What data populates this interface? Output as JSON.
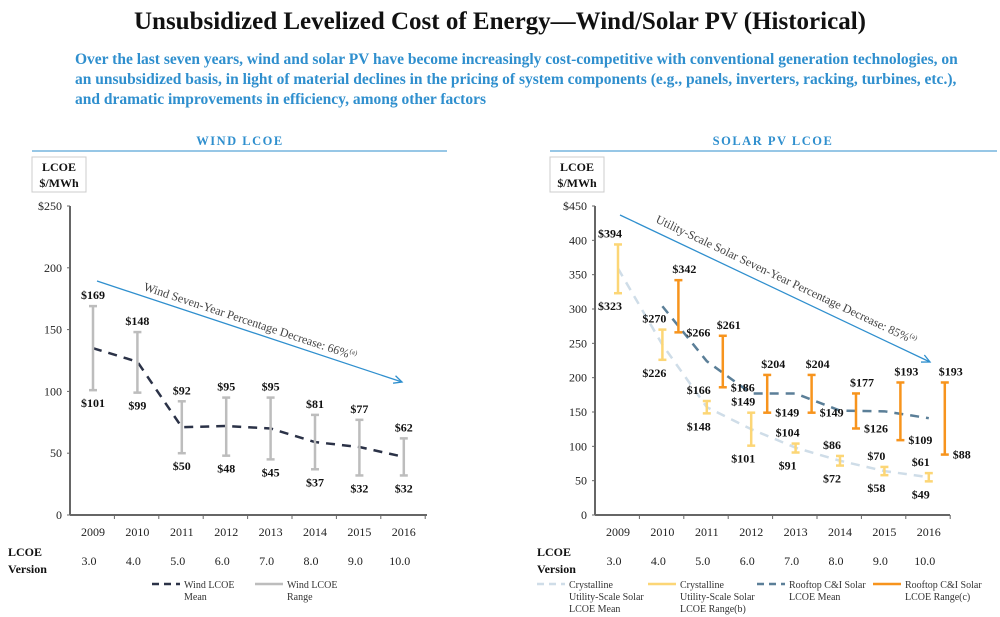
{
  "title": "Unsubsidized Levelized Cost of Energy—Wind/Solar PV (Historical)",
  "subtitle": "Over the last seven years, wind and solar PV have become increasingly cost-competitive with conventional generation technologies, on an unsubsidized basis, in light of material declines in the pricing of system components (e.g., panels, inverters, racking, turbines, etc.), and dramatic improvements in efficiency, among other factors",
  "colors": {
    "accent": "#2f8fce",
    "wind_mean": "#2b3247",
    "wind_range": "#bdbdbd",
    "utility_mean": "#cfdde8",
    "utility_range": "#fcd676",
    "rooftop_mean": "#5b7f98",
    "rooftop_range": "#f7941d"
  },
  "chart_data": [
    {
      "type": "range-line",
      "header": "WIND LCOE",
      "unit_box": [
        "LCOE",
        "$/MWh"
      ],
      "x": [
        "2009",
        "2010",
        "2011",
        "2012",
        "2013",
        "2014",
        "2015",
        "2016"
      ],
      "version_label": [
        "LCOE",
        "Version"
      ],
      "versions": [
        "3.0",
        "4.0",
        "5.0",
        "6.0",
        "7.0",
        "8.0",
        "9.0",
        "10.0"
      ],
      "ylim": [
        0,
        250
      ],
      "yticks": [
        "0",
        "50",
        "100",
        "150",
        "200",
        "$250"
      ],
      "annotation": "Wind Seven-Year Percentage Decrease: 66%",
      "annotation_note": "(a)",
      "series": [
        {
          "name": "Wind LCOE Mean",
          "kind": "mean",
          "style": "dashed",
          "color": "#2b3247",
          "values": [
            135,
            124,
            71,
            72,
            70,
            59,
            55,
            47
          ]
        },
        {
          "name": "Wind LCOE Range",
          "kind": "range",
          "color": "#bdbdbd",
          "low": [
            101,
            99,
            50,
            48,
            45,
            37,
            32,
            32
          ],
          "high": [
            169,
            148,
            92,
            95,
            95,
            81,
            77,
            62
          ],
          "low_labels": [
            "$101",
            "$99",
            "$50",
            "$48",
            "$45",
            "$37",
            "$32",
            "$32"
          ],
          "high_labels": [
            "$169",
            "$148",
            "$92",
            "$95",
            "$95",
            "$81",
            "$77",
            "$62"
          ]
        }
      ],
      "legend": [
        {
          "lines": [
            "Wind LCOE",
            "Mean"
          ],
          "style": "dashed",
          "color": "#2b3247"
        },
        {
          "lines": [
            "Wind LCOE",
            "Range"
          ],
          "style": "solid",
          "color": "#bdbdbd"
        }
      ]
    },
    {
      "type": "range-line",
      "header": "SOLAR PV LCOE",
      "unit_box": [
        "LCOE",
        "$/MWh"
      ],
      "x": [
        "2009",
        "2010",
        "2011",
        "2012",
        "2013",
        "2014",
        "2015",
        "2016"
      ],
      "version_label": [
        "LCOE",
        "Version"
      ],
      "versions": [
        "3.0",
        "4.0",
        "5.0",
        "6.0",
        "7.0",
        "8.0",
        "9.0",
        "10.0"
      ],
      "ylim": [
        0,
        450
      ],
      "yticks": [
        "0",
        "50",
        "100",
        "150",
        "200",
        "250",
        "300",
        "350",
        "400",
        "$450"
      ],
      "annotation": "Utility-Scale Solar Seven-Year Percentage Decrease: 85%",
      "annotation_note": "(a)",
      "series": [
        {
          "name": "Crystalline Utility-Scale Solar LCOE Mean",
          "kind": "mean",
          "style": "dashed",
          "color": "#cfdde8",
          "values": [
            359,
            248,
            157,
            125,
            98,
            79,
            64,
            55
          ]
        },
        {
          "name": "Crystalline Utility-Scale Solar LCOE Range",
          "kind": "range",
          "color": "#fcd676",
          "low": [
            323,
            226,
            148,
            101,
            91,
            72,
            58,
            49
          ],
          "high": [
            394,
            270,
            166,
            149,
            104,
            86,
            70,
            61
          ],
          "low_labels": [
            "$323",
            "$226",
            "$148",
            "$101",
            "$91",
            "$72",
            "$58",
            "$49"
          ],
          "high_labels": [
            "$394",
            "$270",
            "$166",
            "$149",
            "$104",
            "$86",
            "$70",
            "$61"
          ]
        },
        {
          "name": "Rooftop C&I Solar LCOE Mean",
          "kind": "mean",
          "style": "dashed",
          "color": "#5b7f98",
          "values": [
            null,
            304,
            224,
            177,
            177,
            152,
            151,
            141
          ]
        },
        {
          "name": "Rooftop C&I Solar LCOE Range",
          "kind": "range",
          "color": "#f7941d",
          "low": [
            null,
            266,
            186,
            149,
            149,
            126,
            109,
            88
          ],
          "high": [
            null,
            342,
            261,
            204,
            204,
            177,
            193,
            193
          ],
          "low_labels": [
            null,
            "$266",
            "$186",
            "$149",
            "$149",
            "$126",
            "$109",
            "$88"
          ],
          "high_labels": [
            null,
            "$342",
            "$261",
            "$204",
            "$204",
            "$177",
            "$193",
            "$193"
          ]
        }
      ],
      "legend": [
        {
          "lines": [
            "Crystalline",
            "Utility-Scale Solar",
            "LCOE Mean"
          ],
          "style": "dashed",
          "color": "#cfdde8"
        },
        {
          "lines": [
            "Crystalline",
            "Utility-Scale Solar",
            "LCOE Range(b)"
          ],
          "style": "solid",
          "color": "#fcd676"
        },
        {
          "lines": [
            "Rooftop C&I Solar",
            "LCOE Mean"
          ],
          "style": "dashed",
          "color": "#5b7f98"
        },
        {
          "lines": [
            "Rooftop C&I Solar",
            "LCOE Range(c)"
          ],
          "style": "solid",
          "color": "#f7941d"
        }
      ]
    }
  ]
}
